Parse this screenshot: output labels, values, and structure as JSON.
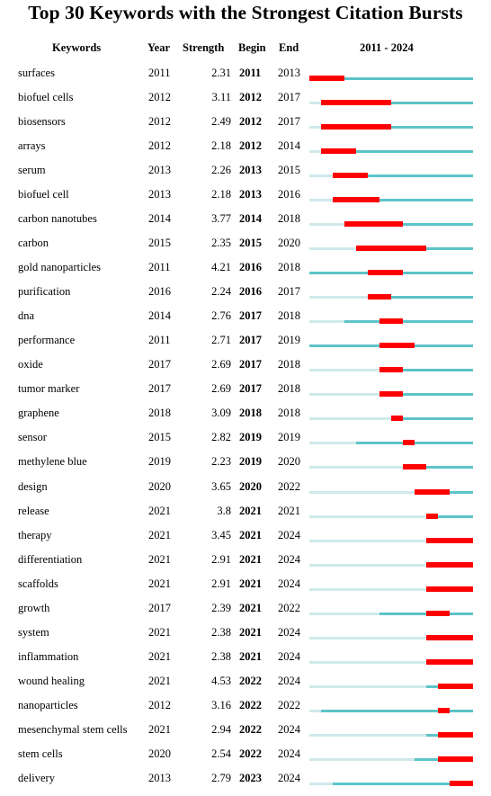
{
  "chart_data": {
    "type": "table",
    "title": "Top 30 Keywords with the Strongest Citation Bursts",
    "columns": [
      "Keywords",
      "Year",
      "Strength",
      "Begin",
      "End",
      "2011 - 2024"
    ],
    "range": [
      2011,
      2024
    ],
    "colors": {
      "burst": "#ff0000",
      "active": "#5cc4c8",
      "inactive": "#cfe9eb"
    },
    "rows": [
      {
        "keyword": "surfaces",
        "year": "2011",
        "strength": "2.31",
        "begin": "2011",
        "end": "2013"
      },
      {
        "keyword": "biofuel cells",
        "year": "2012",
        "strength": "3.11",
        "begin": "2012",
        "end": "2017"
      },
      {
        "keyword": "biosensors",
        "year": "2012",
        "strength": "2.49",
        "begin": "2012",
        "end": "2017"
      },
      {
        "keyword": "arrays",
        "year": "2012",
        "strength": "2.18",
        "begin": "2012",
        "end": "2014"
      },
      {
        "keyword": "serum",
        "year": "2013",
        "strength": "2.26",
        "begin": "2013",
        "end": "2015"
      },
      {
        "keyword": "biofuel cell",
        "year": "2013",
        "strength": "2.18",
        "begin": "2013",
        "end": "2016"
      },
      {
        "keyword": "carbon nanotubes",
        "year": "2014",
        "strength": "3.77",
        "begin": "2014",
        "end": "2018"
      },
      {
        "keyword": "carbon",
        "year": "2015",
        "strength": "2.35",
        "begin": "2015",
        "end": "2020"
      },
      {
        "keyword": "gold nanoparticles",
        "year": "2011",
        "strength": "4.21",
        "begin": "2016",
        "end": "2018"
      },
      {
        "keyword": "purification",
        "year": "2016",
        "strength": "2.24",
        "begin": "2016",
        "end": "2017"
      },
      {
        "keyword": "dna",
        "year": "2014",
        "strength": "2.76",
        "begin": "2017",
        "end": "2018"
      },
      {
        "keyword": "performance",
        "year": "2011",
        "strength": "2.71",
        "begin": "2017",
        "end": "2019"
      },
      {
        "keyword": "oxide",
        "year": "2017",
        "strength": "2.69",
        "begin": "2017",
        "end": "2018"
      },
      {
        "keyword": "tumor marker",
        "year": "2017",
        "strength": "2.69",
        "begin": "2017",
        "end": "2018"
      },
      {
        "keyword": "graphene",
        "year": "2018",
        "strength": "3.09",
        "begin": "2018",
        "end": "2018"
      },
      {
        "keyword": "sensor",
        "year": "2015",
        "strength": "2.82",
        "begin": "2019",
        "end": "2019"
      },
      {
        "keyword": "methylene blue",
        "year": "2019",
        "strength": "2.23",
        "begin": "2019",
        "end": "2020"
      },
      {
        "keyword": "design",
        "year": "2020",
        "strength": "3.65",
        "begin": "2020",
        "end": "2022"
      },
      {
        "keyword": "release",
        "year": "2021",
        "strength": "3.8",
        "begin": "2021",
        "end": "2021"
      },
      {
        "keyword": "therapy",
        "year": "2021",
        "strength": "3.45",
        "begin": "2021",
        "end": "2024"
      },
      {
        "keyword": "differentiation",
        "year": "2021",
        "strength": "2.91",
        "begin": "2021",
        "end": "2024"
      },
      {
        "keyword": "scaffolds",
        "year": "2021",
        "strength": "2.91",
        "begin": "2021",
        "end": "2024"
      },
      {
        "keyword": "growth",
        "year": "2017",
        "strength": "2.39",
        "begin": "2021",
        "end": "2022"
      },
      {
        "keyword": "system",
        "year": "2021",
        "strength": "2.38",
        "begin": "2021",
        "end": "2024"
      },
      {
        "keyword": "inflammation",
        "year": "2021",
        "strength": "2.38",
        "begin": "2021",
        "end": "2024"
      },
      {
        "keyword": "wound healing",
        "year": "2021",
        "strength": "4.53",
        "begin": "2022",
        "end": "2024"
      },
      {
        "keyword": "nanoparticles",
        "year": "2012",
        "strength": "3.16",
        "begin": "2022",
        "end": "2022"
      },
      {
        "keyword": "mesenchymal stem cells",
        "year": "2021",
        "strength": "2.94",
        "begin": "2022",
        "end": "2024"
      },
      {
        "keyword": "stem cells",
        "year": "2020",
        "strength": "2.54",
        "begin": "2022",
        "end": "2024"
      },
      {
        "keyword": "delivery",
        "year": "2013",
        "strength": "2.79",
        "begin": "2023",
        "end": "2024"
      }
    ]
  }
}
